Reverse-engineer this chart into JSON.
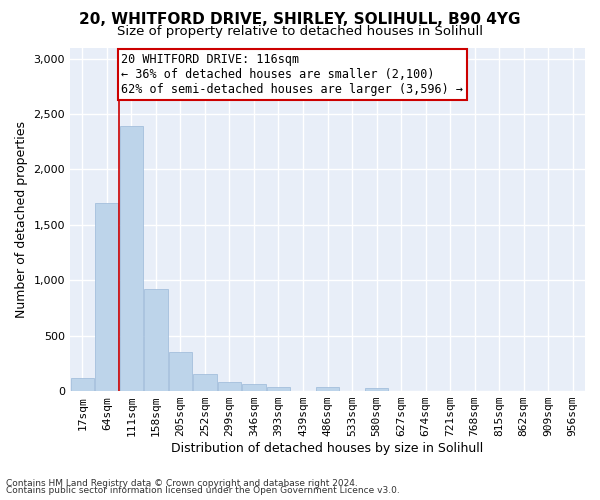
{
  "title1": "20, WHITFORD DRIVE, SHIRLEY, SOLIHULL, B90 4YG",
  "title2": "Size of property relative to detached houses in Solihull",
  "xlabel": "Distribution of detached houses by size in Solihull",
  "ylabel": "Number of detached properties",
  "footnote1": "Contains HM Land Registry data © Crown copyright and database right 2024.",
  "footnote2": "Contains public sector information licensed under the Open Government Licence v3.0.",
  "bar_labels": [
    "17sqm",
    "64sqm",
    "111sqm",
    "158sqm",
    "205sqm",
    "252sqm",
    "299sqm",
    "346sqm",
    "393sqm",
    "439sqm",
    "486sqm",
    "533sqm",
    "580sqm",
    "627sqm",
    "674sqm",
    "721sqm",
    "768sqm",
    "815sqm",
    "862sqm",
    "909sqm",
    "956sqm"
  ],
  "bar_values": [
    120,
    1700,
    2390,
    920,
    355,
    155,
    85,
    60,
    35,
    0,
    35,
    0,
    30,
    0,
    0,
    0,
    0,
    0,
    0,
    0,
    0
  ],
  "bar_color": "#bdd4ea",
  "bar_edge_color": "#9ab8d8",
  "highlight_line_color": "#cc0000",
  "annotation_line1": "20 WHITFORD DRIVE: 116sqm",
  "annotation_line2": "← 36% of detached houses are smaller (2,100)",
  "annotation_line3": "62% of semi-detached houses are larger (3,596) →",
  "annotation_box_color": "#ffffff",
  "annotation_box_edge": "#cc0000",
  "ylim": [
    0,
    3100
  ],
  "yticks": [
    0,
    500,
    1000,
    1500,
    2000,
    2500,
    3000
  ],
  "bg_color": "#e8eef8",
  "grid_color": "#ffffff",
  "title1_fontsize": 11,
  "title2_fontsize": 9.5,
  "tick_fontsize": 8,
  "ylabel_fontsize": 9,
  "xlabel_fontsize": 9,
  "footnote_fontsize": 6.5,
  "annotation_fontsize": 8.5,
  "red_line_at_bar": 2
}
